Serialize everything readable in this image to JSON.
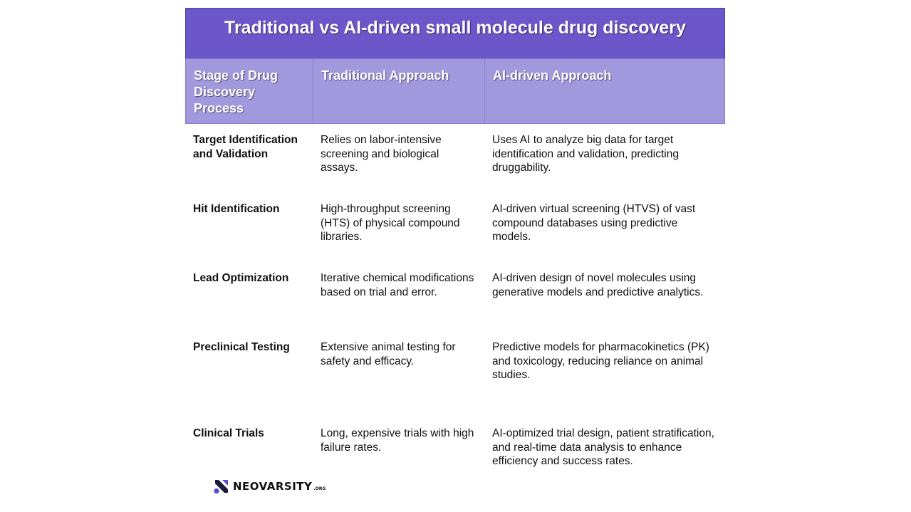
{
  "title": "Traditional vs AI-driven small molecule drug discovery",
  "headers": [
    "Stage of Drug Discovery Process",
    "Traditional Approach",
    "AI-driven Approach"
  ],
  "rows": [
    {
      "stage": "Target Identification and Validation",
      "traditional": "Relies on labor-intensive screening and biological assays.",
      "ai": "Uses AI to analyze big data for target identification and validation, predicting druggability."
    },
    {
      "stage": "Hit Identification",
      "traditional": "High-throughput screening (HTS) of physical compound libraries.",
      "ai": "AI-driven virtual screening (HTVS) of vast compound databases using predictive models."
    },
    {
      "stage": "Lead Optimization",
      "traditional": "Iterative chemical modifications based on trial and error.",
      "ai": "AI-driven design of novel molecules using generative models and predictive analytics."
    },
    {
      "stage": "Preclinical Testing",
      "traditional": "Extensive animal testing for safety and efficacy.",
      "ai": "Predictive models for pharmacokinetics (PK) and toxicology, reducing reliance on animal studies."
    },
    {
      "stage": "Clinical Trials",
      "traditional": "Long, expensive trials with high failure rates.",
      "ai": "AI-optimized trial design, patient stratification, and real-time data analysis to enhance efficiency and success rates."
    }
  ],
  "logo": {
    "name": "NEOVARSITY",
    "suffix": ".ORG",
    "icon": "neovarsity-logo-icon"
  },
  "colors": {
    "title_bg": "#6b57c9",
    "header_bg": "#a298dd",
    "logo_accent": "#5b47d6"
  }
}
